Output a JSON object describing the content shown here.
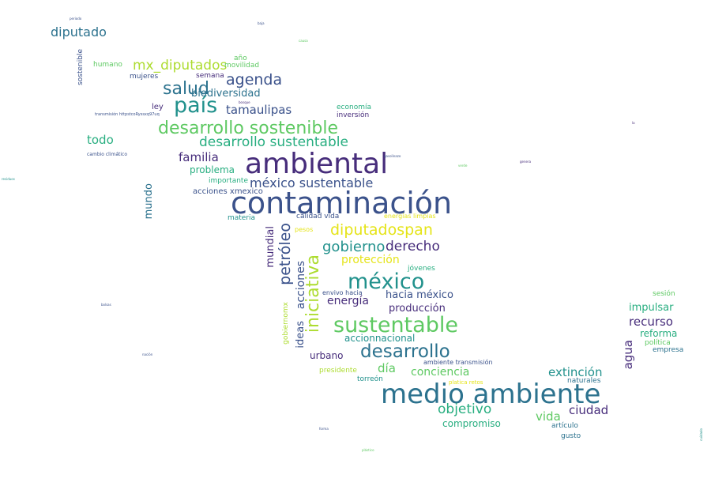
{
  "palette": {
    "dark_purple": "#472d7b",
    "indigo": "#3b528b",
    "steel_blue": "#2c728e",
    "teal": "#21918c",
    "sea_green": "#28ae80",
    "green": "#5ec962",
    "lime": "#addc30",
    "yellow": "#e5e419"
  },
  "words": [
    {
      "text": "contaminación",
      "color": "#3b528b"
    },
    {
      "text": "ambiental",
      "color": "#472d7b"
    },
    {
      "text": "medio ambiente",
      "color": "#2c728e"
    },
    {
      "text": "sustentable",
      "color": "#5ec962"
    },
    {
      "text": "méxico",
      "color": "#21918c"
    },
    {
      "text": "desarrollo sostenible",
      "color": "#5ec962"
    },
    {
      "text": "país",
      "color": "#21918c"
    },
    {
      "text": "desarrollo",
      "color": "#2c728e"
    },
    {
      "text": "iniciativa",
      "color": "#addc30"
    },
    {
      "text": "salud",
      "color": "#2c728e"
    },
    {
      "text": "agenda",
      "color": "#3b528b"
    },
    {
      "text": "desarrollo sustentable",
      "color": "#28ae80"
    },
    {
      "text": "mx_diputados",
      "color": "#addc30"
    },
    {
      "text": "diputadospan",
      "color": "#e5e419"
    },
    {
      "text": "méxico sustentable",
      "color": "#3b528b"
    },
    {
      "text": "petróleo",
      "color": "#3b528b"
    },
    {
      "text": "gobierno",
      "color": "#21918c"
    },
    {
      "text": "derecho",
      "color": "#472d7b"
    },
    {
      "text": "objetivo",
      "color": "#28ae80"
    },
    {
      "text": "diputado",
      "color": "#2c728e"
    },
    {
      "text": "tamaulipas",
      "color": "#3b528b"
    },
    {
      "text": "todo",
      "color": "#28ae80"
    },
    {
      "text": "familia",
      "color": "#472d7b"
    },
    {
      "text": "protección",
      "color": "#e5e419"
    },
    {
      "text": "energía",
      "color": "#472d7b"
    },
    {
      "text": "acciones",
      "color": "#3b528b"
    },
    {
      "text": "conciencia",
      "color": "#5ec962"
    },
    {
      "text": "ideas",
      "color": "#3b528b"
    },
    {
      "text": "hacia méxico",
      "color": "#3b528b"
    },
    {
      "text": "agua",
      "color": "#472d7b"
    },
    {
      "text": "recurso",
      "color": "#472d7b"
    },
    {
      "text": "extinción",
      "color": "#21918c"
    },
    {
      "text": "día",
      "color": "#5ec962"
    },
    {
      "text": "ciudad",
      "color": "#472d7b"
    },
    {
      "text": "vida",
      "color": "#5ec962"
    },
    {
      "text": "biodiversidad",
      "color": "#2c728e"
    },
    {
      "text": "mundo",
      "color": "#2c728e"
    },
    {
      "text": "mundial",
      "color": "#472d7b"
    },
    {
      "text": "producción",
      "color": "#472d7b"
    },
    {
      "text": "problema",
      "color": "#28ae80"
    },
    {
      "text": "impulsar",
      "color": "#28ae80"
    },
    {
      "text": "reforma",
      "color": "#28ae80"
    },
    {
      "text": "accionnacional",
      "color": "#21918c"
    },
    {
      "text": "urbano",
      "color": "#472d7b"
    },
    {
      "text": "compromiso",
      "color": "#28ae80"
    },
    {
      "text": "acciones xmexico",
      "color": "#3b528b"
    },
    {
      "text": "importante",
      "color": "#28ae80"
    },
    {
      "text": "gobiernomx",
      "color": "#addc30"
    },
    {
      "text": "jóvenes",
      "color": "#28ae80"
    },
    {
      "text": "presidente",
      "color": "#addc30"
    },
    {
      "text": "torreón",
      "color": "#21918c"
    },
    {
      "text": "naturales",
      "color": "#2c728e"
    },
    {
      "text": "sesión",
      "color": "#5ec962"
    },
    {
      "text": "política",
      "color": "#5ec962"
    },
    {
      "text": "empresa",
      "color": "#2c728e"
    },
    {
      "text": "artículo",
      "color": "#2c728e"
    },
    {
      "text": "gusto",
      "color": "#2c728e"
    },
    {
      "text": "movilidad",
      "color": "#5ec962"
    },
    {
      "text": "año",
      "color": "#5ec962"
    },
    {
      "text": "mujeres",
      "color": "#3b528b"
    },
    {
      "text": "semana",
      "color": "#472d7b"
    },
    {
      "text": "ley",
      "color": "#472d7b"
    },
    {
      "text": "humano",
      "color": "#5ec962"
    },
    {
      "text": "sostenible",
      "color": "#3b528b"
    },
    {
      "text": "economía",
      "color": "#28ae80"
    },
    {
      "text": "inversión",
      "color": "#472d7b"
    },
    {
      "text": "calidad vida",
      "color": "#3b528b"
    },
    {
      "text": "materia",
      "color": "#21918c"
    },
    {
      "text": "energías limpias",
      "color": "#e5e419"
    },
    {
      "text": "pesos",
      "color": "#e5e419"
    },
    {
      "text": "envivo hacia",
      "color": "#3b528b"
    },
    {
      "text": "ambiente transmisión",
      "color": "#3b528b"
    },
    {
      "text": "platica retos",
      "color": "#e5e419"
    },
    {
      "text": "cambio climático",
      "color": "#3b528b"
    },
    {
      "text": "transmisión httpstcoRyssxq97uq",
      "color": "#3b528b"
    },
    {
      "text": "periodo",
      "color": "#3b528b"
    },
    {
      "text": "baja",
      "color": "#3b528b"
    },
    {
      "text": "verde",
      "color": "#5ec962"
    },
    {
      "text": "genera",
      "color": "#472d7b"
    },
    {
      "text": "gasolinazo",
      "color": "#3b528b"
    },
    {
      "text": "residuos",
      "color": "#21918c"
    },
    {
      "text": "la",
      "color": "#472d7b"
    },
    {
      "text": "nación",
      "color": "#3b528b"
    },
    {
      "text": "bolsas",
      "color": "#3b528b"
    },
    {
      "text": "forma",
      "color": "#3b528b"
    },
    {
      "text": "cuidado",
      "color": "#21918c"
    },
    {
      "text": "bosque",
      "color": "#472d7b"
    },
    {
      "text": "plástico",
      "color": "#5ec962"
    },
    {
      "text": "causa",
      "color": "#5ec962"
    }
  ]
}
